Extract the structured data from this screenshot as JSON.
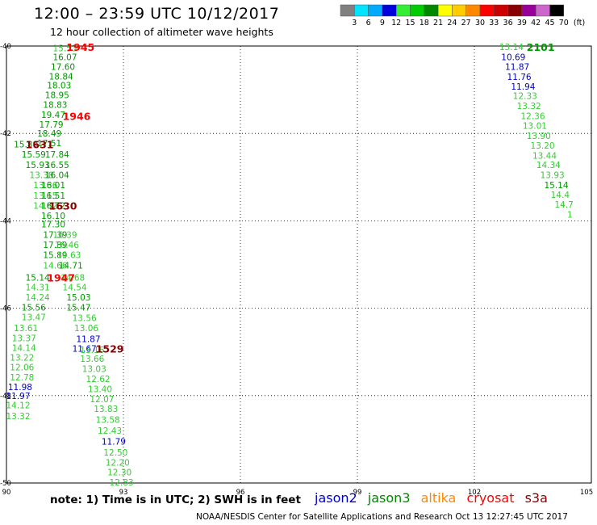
{
  "header": {
    "title": "12:00 – 23:59 UTC 10/12/2017",
    "subtitle": "12 hour collection of altimeter wave heights"
  },
  "scale": {
    "labels": [
      "3",
      "6",
      "9",
      "12",
      "15",
      "18",
      "21",
      "24",
      "27",
      "30",
      "33",
      "36",
      "39",
      "42",
      "45",
      "70",
      "(ft)"
    ],
    "colors": [
      "#808080",
      "#00e5ff",
      "#00aaff",
      "#0000dd",
      "#33ee33",
      "#00cc00",
      "#008800",
      "#ffff00",
      "#ffcc00",
      "#ff8800",
      "#ff0000",
      "#cc0000",
      "#880000",
      "#990099",
      "#cc66cc",
      "#000000"
    ]
  },
  "footer": {
    "note": "note: 1) Time is in UTC; 2) SWH is in feet",
    "credit": "NOAA/NESDIS Center for Satellite Applications and Research    Oct 13 12:27:45 UTC 2017"
  },
  "legend": [
    {
      "name": "jason2",
      "color": "#0000cc"
    },
    {
      "name": "jason3",
      "color": "#008800"
    },
    {
      "name": "altika",
      "color": "#ff8800"
    },
    {
      "name": "cryosat",
      "color": "#ff0000"
    },
    {
      "name": "s3a",
      "color": "#880000"
    }
  ],
  "chart_data": {
    "type": "scatter",
    "title": "12:00 – 23:59 UTC 10/12/2017",
    "subtitle": "12 hour collection of altimeter wave heights",
    "xlabel": "",
    "ylabel": "",
    "xlim": [
      90,
      105
    ],
    "ylim": [
      -50,
      -40
    ],
    "xticks": [
      90,
      93,
      96,
      99,
      102,
      105
    ],
    "xtick_labels": [
      "90",
      "93",
      "96",
      "99",
      "102",
      "105"
    ],
    "yticks": [
      -40,
      -42,
      -44,
      -46,
      -48,
      -50
    ],
    "ytick_labels": [
      "-40",
      "-42",
      "-44",
      "-46",
      "-48",
      "-50"
    ],
    "grid": true,
    "legend_placement": "bottom",
    "series_colors": {
      "light": "#33cc33",
      "green": "#009900",
      "jason2": "#0000cc",
      "cryosat": "#ff0000",
      "s3a": "#880000"
    },
    "points": [
      {
        "x": 91.5,
        "y": -40.05,
        "v": "15.53",
        "c": "light"
      },
      {
        "x": 91.5,
        "y": -40.25,
        "v": "16.07",
        "c": "green"
      },
      {
        "x": 91.45,
        "y": -40.47,
        "v": "17.60",
        "c": "green"
      },
      {
        "x": 91.4,
        "y": -40.69,
        "v": "18.84",
        "c": "green"
      },
      {
        "x": 91.35,
        "y": -40.9,
        "v": "18.03",
        "c": "green"
      },
      {
        "x": 91.3,
        "y": -41.12,
        "v": "18.95",
        "c": "green"
      },
      {
        "x": 91.25,
        "y": -41.34,
        "v": "18.83",
        "c": "green"
      },
      {
        "x": 91.2,
        "y": -41.57,
        "v": "19.47",
        "c": "green"
      },
      {
        "x": 91.15,
        "y": -41.79,
        "v": "17.79",
        "c": "green"
      },
      {
        "x": 91.1,
        "y": -42.0,
        "v": "18.49",
        "c": "green"
      },
      {
        "x": 90.5,
        "y": -42.25,
        "v": "15.89",
        "c": "green"
      },
      {
        "x": 91.1,
        "y": -42.22,
        "v": "17.51",
        "c": "green"
      },
      {
        "x": 90.7,
        "y": -42.48,
        "v": "15.59",
        "c": "green"
      },
      {
        "x": 91.3,
        "y": -42.48,
        "v": "17.84",
        "c": "green"
      },
      {
        "x": 90.8,
        "y": -42.72,
        "v": "15.93",
        "c": "green"
      },
      {
        "x": 91.3,
        "y": -42.72,
        "v": "16.55",
        "c": "green"
      },
      {
        "x": 90.9,
        "y": -42.95,
        "v": "13.38",
        "c": "light"
      },
      {
        "x": 91.3,
        "y": -42.95,
        "v": "16.04",
        "c": "green"
      },
      {
        "x": 91.0,
        "y": -43.18,
        "v": "13.36",
        "c": "light"
      },
      {
        "x": 91.2,
        "y": -43.18,
        "v": "16.01",
        "c": "green"
      },
      {
        "x": 91.0,
        "y": -43.42,
        "v": "13.15",
        "c": "light"
      },
      {
        "x": 91.2,
        "y": -43.42,
        "v": "16.51",
        "c": "green"
      },
      {
        "x": 91.0,
        "y": -43.65,
        "v": "14.82",
        "c": "light"
      },
      {
        "x": 91.2,
        "y": -43.65,
        "v": "16.72",
        "c": "green"
      },
      {
        "x": 91.2,
        "y": -43.88,
        "v": "16.10",
        "c": "green"
      },
      {
        "x": 91.2,
        "y": -44.08,
        "v": "17.30",
        "c": "green"
      },
      {
        "x": 91.25,
        "y": -44.32,
        "v": "17.39",
        "c": "green"
      },
      {
        "x": 91.5,
        "y": -44.32,
        "v": "16.39",
        "c": "light"
      },
      {
        "x": 91.25,
        "y": -44.55,
        "v": "17.89",
        "c": "green"
      },
      {
        "x": 91.55,
        "y": -44.55,
        "v": "16.46",
        "c": "light"
      },
      {
        "x": 91.25,
        "y": -44.78,
        "v": "15.89",
        "c": "green"
      },
      {
        "x": 91.6,
        "y": -44.78,
        "v": "14.63",
        "c": "light"
      },
      {
        "x": 91.25,
        "y": -45.02,
        "v": "14.66",
        "c": "light"
      },
      {
        "x": 91.65,
        "y": -45.02,
        "v": "14.71",
        "c": "green"
      },
      {
        "x": 90.8,
        "y": -45.3,
        "v": "15.14",
        "c": "green"
      },
      {
        "x": 91.7,
        "y": -45.3,
        "v": "14.68",
        "c": "light"
      },
      {
        "x": 90.8,
        "y": -45.52,
        "v": "14.31",
        "c": "light"
      },
      {
        "x": 91.75,
        "y": -45.52,
        "v": "14.54",
        "c": "light"
      },
      {
        "x": 90.8,
        "y": -45.75,
        "v": "14.24",
        "c": "light"
      },
      {
        "x": 91.85,
        "y": -45.75,
        "v": "15.03",
        "c": "green"
      },
      {
        "x": 90.7,
        "y": -45.98,
        "v": "15.56",
        "c": "green"
      },
      {
        "x": 91.85,
        "y": -45.98,
        "v": "15.47",
        "c": "green"
      },
      {
        "x": 90.7,
        "y": -46.2,
        "v": "13.47",
        "c": "light"
      },
      {
        "x": 92.0,
        "y": -46.22,
        "v": "13.56",
        "c": "light"
      },
      {
        "x": 90.5,
        "y": -46.45,
        "v": "13.61",
        "c": "light"
      },
      {
        "x": 92.05,
        "y": -46.45,
        "v": "13.06",
        "c": "light"
      },
      {
        "x": 90.45,
        "y": -46.68,
        "v": "13.37",
        "c": "light"
      },
      {
        "x": 92.1,
        "y": -46.7,
        "v": "11.87",
        "c": "jason2"
      },
      {
        "x": 90.45,
        "y": -46.9,
        "v": "14.14",
        "c": "light"
      },
      {
        "x": 92.0,
        "y": -46.92,
        "v": "11.67",
        "c": "jason2"
      },
      {
        "x": 92.2,
        "y": -46.95,
        "v": "13.16",
        "c": "light"
      },
      {
        "x": 90.4,
        "y": -47.13,
        "v": "13.22",
        "c": "light"
      },
      {
        "x": 92.2,
        "y": -47.15,
        "v": "13.66",
        "c": "light"
      },
      {
        "x": 90.4,
        "y": -47.35,
        "v": "12.06",
        "c": "light"
      },
      {
        "x": 92.25,
        "y": -47.38,
        "v": "13.03",
        "c": "light"
      },
      {
        "x": 90.4,
        "y": -47.58,
        "v": "12.78",
        "c": "light"
      },
      {
        "x": 92.35,
        "y": -47.62,
        "v": "12.62",
        "c": "light"
      },
      {
        "x": 90.35,
        "y": -47.8,
        "v": "11.98",
        "c": "jason2"
      },
      {
        "x": 92.4,
        "y": -47.85,
        "v": "13.40",
        "c": "light"
      },
      {
        "x": 90.3,
        "y": -48.0,
        "v": "11.97",
        "c": "jason2"
      },
      {
        "x": 92.45,
        "y": -48.08,
        "v": "12.07",
        "c": "light"
      },
      {
        "x": 90.3,
        "y": -48.22,
        "v": "14.12",
        "c": "light"
      },
      {
        "x": 92.55,
        "y": -48.3,
        "v": "13.83",
        "c": "light"
      },
      {
        "x": 90.3,
        "y": -48.47,
        "v": "13.32",
        "c": "light"
      },
      {
        "x": 92.6,
        "y": -48.55,
        "v": "13.58",
        "c": "light"
      },
      {
        "x": 92.65,
        "y": -48.8,
        "v": "12.43",
        "c": "light"
      },
      {
        "x": 92.75,
        "y": -49.05,
        "v": "11.79",
        "c": "jason2"
      },
      {
        "x": 92.8,
        "y": -49.3,
        "v": "12.50",
        "c": "light"
      },
      {
        "x": 92.85,
        "y": -49.53,
        "v": "12.20",
        "c": "light"
      },
      {
        "x": 92.9,
        "y": -49.75,
        "v": "12.30",
        "c": "light"
      },
      {
        "x": 92.95,
        "y": -49.98,
        "v": "12.83",
        "c": "light"
      },
      {
        "x": 102.95,
        "y": -40.02,
        "v": "13.14",
        "c": "light"
      },
      {
        "x": 103.0,
        "y": -40.25,
        "v": "10.69",
        "c": "jason2"
      },
      {
        "x": 103.1,
        "y": -40.47,
        "v": "11.87",
        "c": "jason2"
      },
      {
        "x": 103.15,
        "y": -40.7,
        "v": "11.76",
        "c": "jason2"
      },
      {
        "x": 103.25,
        "y": -40.92,
        "v": "11.94",
        "c": "jason2"
      },
      {
        "x": 103.3,
        "y": -41.14,
        "v": "12.33",
        "c": "light"
      },
      {
        "x": 103.4,
        "y": -41.37,
        "v": "13.32",
        "c": "light"
      },
      {
        "x": 103.5,
        "y": -41.6,
        "v": "12.36",
        "c": "light"
      },
      {
        "x": 103.55,
        "y": -41.82,
        "v": "13.01",
        "c": "light"
      },
      {
        "x": 103.65,
        "y": -42.05,
        "v": "13.90",
        "c": "light"
      },
      {
        "x": 103.75,
        "y": -42.27,
        "v": "13.20",
        "c": "light"
      },
      {
        "x": 103.8,
        "y": -42.5,
        "v": "13.44",
        "c": "light"
      },
      {
        "x": 103.9,
        "y": -42.72,
        "v": "14.34",
        "c": "light"
      },
      {
        "x": 104.0,
        "y": -42.95,
        "v": "13.93",
        "c": "light"
      },
      {
        "x": 104.1,
        "y": -43.18,
        "v": "15.14",
        "c": "green"
      },
      {
        "x": 104.2,
        "y": -43.4,
        "v": "14.4",
        "c": "light"
      },
      {
        "x": 104.3,
        "y": -43.62,
        "v": "14.7",
        "c": "light"
      },
      {
        "x": 104.45,
        "y": -43.85,
        "v": "1",
        "c": "light"
      }
    ],
    "annotations": [
      {
        "x": 91.9,
        "y": -40.02,
        "text": "1945",
        "c": "cryosat"
      },
      {
        "x": 91.8,
        "y": -41.6,
        "text": "1946",
        "c": "cryosat"
      },
      {
        "x": 90.85,
        "y": -42.25,
        "text": "1631",
        "c": "s3a"
      },
      {
        "x": 91.45,
        "y": -43.65,
        "text": "1630",
        "c": "s3a"
      },
      {
        "x": 91.4,
        "y": -45.3,
        "text": "1947",
        "c": "cryosat"
      },
      {
        "x": 92.65,
        "y": -46.92,
        "text": "1529",
        "c": "s3a"
      },
      {
        "x": 103.7,
        "y": -40.02,
        "text": "2101",
        "c": "green"
      }
    ]
  }
}
